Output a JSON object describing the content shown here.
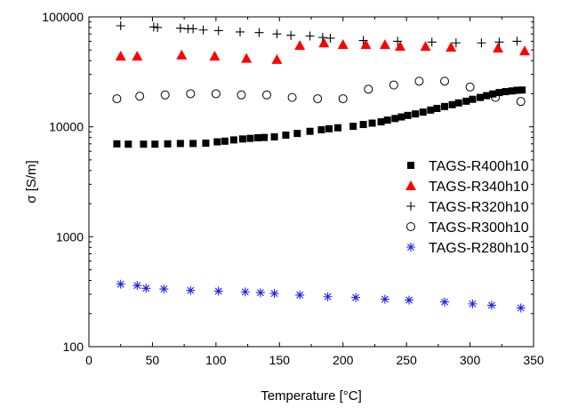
{
  "chart_data": {
    "type": "scatter",
    "xlabel": "Temperature [°C]",
    "ylabel": "σ [S/m]",
    "xlim": [
      0,
      350
    ],
    "ylim": [
      100,
      100000
    ],
    "yscale": "log",
    "x_ticks": [
      0,
      50,
      100,
      150,
      200,
      250,
      300,
      350
    ],
    "x_tick_labels": [
      "0",
      "50",
      "100",
      "150",
      "200",
      "250",
      "300",
      "350"
    ],
    "y_ticks": [
      100,
      1000,
      10000,
      100000
    ],
    "y_tick_labels": [
      "100",
      "1000",
      "10000",
      "100000"
    ],
    "grid": false,
    "legend_position": "right",
    "series": [
      {
        "name": "TAGS-R400h10",
        "marker": "square",
        "color": "#000000",
        "points": [
          [
            22,
            7000
          ],
          [
            31,
            6950
          ],
          [
            43,
            6950
          ],
          [
            52,
            6950
          ],
          [
            62,
            7000
          ],
          [
            72,
            7050
          ],
          [
            82,
            7050
          ],
          [
            92,
            7100
          ],
          [
            101,
            7300
          ],
          [
            107,
            7400
          ],
          [
            114,
            7600
          ],
          [
            121,
            7750
          ],
          [
            127,
            7850
          ],
          [
            133,
            7950
          ],
          [
            138,
            8000
          ],
          [
            146,
            8100
          ],
          [
            155,
            8400
          ],
          [
            164,
            8700
          ],
          [
            174,
            9100
          ],
          [
            183,
            9400
          ],
          [
            189,
            9600
          ],
          [
            196,
            9800
          ],
          [
            208,
            10100
          ],
          [
            216,
            10500
          ],
          [
            223,
            10800
          ],
          [
            230,
            11100
          ],
          [
            235,
            11500
          ],
          [
            241,
            11900
          ],
          [
            246,
            12300
          ],
          [
            251,
            12700
          ],
          [
            257,
            13100
          ],
          [
            263,
            13600
          ],
          [
            269,
            14200
          ],
          [
            274,
            14700
          ],
          [
            280,
            15300
          ],
          [
            286,
            15900
          ],
          [
            291,
            16500
          ],
          [
            297,
            17100
          ],
          [
            302,
            17800
          ],
          [
            308,
            18500
          ],
          [
            313,
            19200
          ],
          [
            318,
            19900
          ],
          [
            323,
            20500
          ],
          [
            328,
            20900
          ],
          [
            333,
            21200
          ],
          [
            337,
            21500
          ],
          [
            341,
            21600
          ]
        ]
      },
      {
        "name": "TAGS-R340h10",
        "marker": "triangle",
        "color": "#ff0000",
        "points": [
          [
            25,
            44000
          ],
          [
            38,
            44000
          ],
          [
            73,
            45000
          ],
          [
            99,
            44000
          ],
          [
            124,
            42000
          ],
          [
            148,
            41000
          ],
          [
            166,
            55000
          ],
          [
            185,
            58000
          ],
          [
            200,
            56000
          ],
          [
            218,
            56000
          ],
          [
            233,
            56000
          ],
          [
            245,
            54000
          ],
          [
            265,
            54000
          ],
          [
            285,
            53000
          ],
          [
            322,
            52000
          ],
          [
            343,
            49000
          ]
        ]
      },
      {
        "name": "TAGS-R320h10",
        "marker": "plus",
        "color": "#000000",
        "points": [
          [
            25,
            83000
          ],
          [
            51,
            81000
          ],
          [
            54,
            80000
          ],
          [
            72,
            79000
          ],
          [
            78,
            78000
          ],
          [
            82,
            78000
          ],
          [
            90,
            76000
          ],
          [
            102,
            75000
          ],
          [
            119,
            73000
          ],
          [
            134,
            72000
          ],
          [
            148,
            70000
          ],
          [
            159,
            68000
          ],
          [
            174,
            67000
          ],
          [
            184,
            65000
          ],
          [
            190,
            64000
          ],
          [
            216,
            61000
          ],
          [
            243,
            60000
          ],
          [
            270,
            59000
          ],
          [
            289,
            58000
          ],
          [
            309,
            58000
          ],
          [
            323,
            59000
          ],
          [
            337,
            60000
          ]
        ]
      },
      {
        "name": "TAGS-R300h10",
        "marker": "circle",
        "color": "#000000",
        "points": [
          [
            22,
            18000
          ],
          [
            40,
            19000
          ],
          [
            60,
            19500
          ],
          [
            80,
            20000
          ],
          [
            100,
            20000
          ],
          [
            120,
            19500
          ],
          [
            140,
            19500
          ],
          [
            160,
            18500
          ],
          [
            180,
            18000
          ],
          [
            200,
            18000
          ],
          [
            220,
            22000
          ],
          [
            240,
            24000
          ],
          [
            260,
            26000
          ],
          [
            280,
            26000
          ],
          [
            300,
            23000
          ],
          [
            320,
            18500
          ],
          [
            340,
            17000
          ]
        ]
      },
      {
        "name": "TAGS-R280h10",
        "marker": "asterisk",
        "color": "#1f22ee",
        "points": [
          [
            25,
            370
          ],
          [
            38,
            360
          ],
          [
            45,
            340
          ],
          [
            59,
            335
          ],
          [
            80,
            325
          ],
          [
            102,
            320
          ],
          [
            123,
            315
          ],
          [
            135,
            310
          ],
          [
            146,
            305
          ],
          [
            166,
            295
          ],
          [
            188,
            285
          ],
          [
            210,
            280
          ],
          [
            233,
            270
          ],
          [
            252,
            265
          ],
          [
            280,
            255
          ],
          [
            302,
            245
          ],
          [
            317,
            238
          ],
          [
            340,
            225
          ]
        ]
      }
    ]
  }
}
